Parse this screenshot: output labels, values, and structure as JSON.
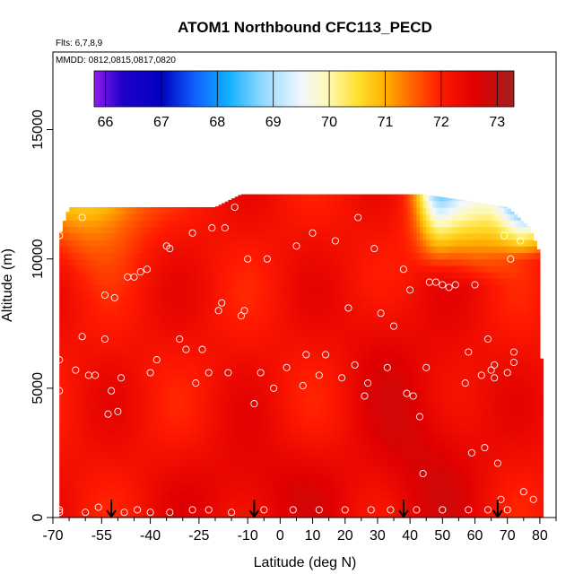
{
  "chart_data": {
    "type": "heatmap",
    "title": "ATOM1 Northbound CFC113_PECD",
    "annotations": [
      "Flts: 6,7,8,9",
      "MMDD: 0812,0815,0817,0820"
    ],
    "xlabel": "Latitude (deg N)",
    "ylabel": "Altitude (m)",
    "xlim": [
      -70,
      85
    ],
    "ylim": [
      0,
      18000
    ],
    "x_ticks": [
      -70,
      -55,
      -40,
      -25,
      -10,
      0,
      10,
      20,
      30,
      40,
      50,
      60,
      70,
      80
    ],
    "x_tick_labels": [
      "-70",
      "-55",
      "-40",
      "-25",
      "-10",
      "0",
      "10",
      "20",
      "30",
      "40",
      "50",
      "60",
      "70",
      "80"
    ],
    "x_minor_ticks": [
      -65,
      -60,
      -50,
      -45,
      -35,
      -30,
      -20,
      -15,
      -5,
      5,
      15,
      25,
      35,
      45,
      55,
      65,
      75,
      85
    ],
    "y_ticks": [
      0,
      5000,
      10000,
      15000
    ],
    "y_tick_labels": [
      "0",
      "5000",
      "10000",
      "15000"
    ],
    "colorbar": {
      "range": [
        65.8,
        73.3
      ],
      "ticks": [
        66,
        67,
        68,
        69,
        70,
        71,
        72,
        73
      ],
      "tick_labels": [
        "66",
        "67",
        "68",
        "69",
        "70",
        "71",
        "72",
        "73"
      ],
      "stops": [
        {
          "v": 65.8,
          "c": "#8f1cf0"
        },
        {
          "v": 66.3,
          "c": "#2000c8"
        },
        {
          "v": 67.0,
          "c": "#0000c0"
        },
        {
          "v": 67.6,
          "c": "#1060ff"
        },
        {
          "v": 68.2,
          "c": "#10b0ff"
        },
        {
          "v": 68.8,
          "c": "#90d8ff"
        },
        {
          "v": 69.5,
          "c": "#f2f7ff"
        },
        {
          "v": 70.0,
          "c": "#fff8b0"
        },
        {
          "v": 70.5,
          "c": "#ffe030"
        },
        {
          "v": 71.0,
          "c": "#ffb000"
        },
        {
          "v": 71.5,
          "c": "#ff6000"
        },
        {
          "v": 72.0,
          "c": "#ff1a00"
        },
        {
          "v": 72.6,
          "c": "#e00000"
        },
        {
          "v": 73.0,
          "c": "#c01010"
        },
        {
          "v": 73.3,
          "c": "#a02020"
        }
      ]
    },
    "field_ceiling": [
      [
        -68,
        10800
      ],
      [
        -67,
        11300
      ],
      [
        -65,
        12000
      ],
      [
        -20,
        12000
      ],
      [
        -12,
        12500
      ],
      [
        44,
        12500
      ],
      [
        55,
        12300
      ],
      [
        70,
        12000
      ],
      [
        77,
        11200
      ],
      [
        80,
        10200
      ],
      [
        80,
        6500
      ],
      [
        81,
        5800
      ],
      [
        81,
        500
      ]
    ],
    "field_lat_range": [
      -68,
      81
    ],
    "samples": [
      [
        -68,
        300
      ],
      [
        -68,
        4900
      ],
      [
        -68,
        6100
      ],
      [
        -68,
        10900
      ],
      [
        -63,
        5700
      ],
      [
        -61,
        7000
      ],
      [
        -61,
        11600
      ],
      [
        -59,
        5500
      ],
      [
        -57,
        5500
      ],
      [
        -54,
        6900
      ],
      [
        -54,
        8600
      ],
      [
        -53,
        4000
      ],
      [
        -52,
        4900
      ],
      [
        -51,
        8500
      ],
      [
        -50,
        4100
      ],
      [
        -49,
        5400
      ],
      [
        -47,
        9300
      ],
      [
        -45,
        9300
      ],
      [
        -43,
        9500
      ],
      [
        -41,
        9600
      ],
      [
        -40,
        5600
      ],
      [
        -38,
        6100
      ],
      [
        -35,
        10500
      ],
      [
        -34,
        10400
      ],
      [
        -31,
        6900
      ],
      [
        -29,
        6500
      ],
      [
        -27,
        11000
      ],
      [
        -26,
        5200
      ],
      [
        -24,
        6500
      ],
      [
        -22,
        5600
      ],
      [
        -21,
        11200
      ],
      [
        -19,
        8000
      ],
      [
        -18,
        8300
      ],
      [
        -17,
        11200
      ],
      [
        -16,
        5600
      ],
      [
        -14,
        12000
      ],
      [
        -12,
        7800
      ],
      [
        -11,
        8000
      ],
      [
        -10,
        10000
      ],
      [
        -8,
        4400
      ],
      [
        -6,
        5600
      ],
      [
        -4,
        10000
      ],
      [
        -2,
        5000
      ],
      [
        2,
        5800
      ],
      [
        5,
        10500
      ],
      [
        7,
        5100
      ],
      [
        8,
        6300
      ],
      [
        10,
        11000
      ],
      [
        12,
        5500
      ],
      [
        14,
        6300
      ],
      [
        17,
        10700
      ],
      [
        19,
        5400
      ],
      [
        21,
        8100
      ],
      [
        23,
        5900
      ],
      [
        24,
        11600
      ],
      [
        26,
        4700
      ],
      [
        27,
        5200
      ],
      [
        29,
        10400
      ],
      [
        31,
        7900
      ],
      [
        33,
        5800
      ],
      [
        35,
        7400
      ],
      [
        38,
        9600
      ],
      [
        39,
        4800
      ],
      [
        40,
        8800
      ],
      [
        41,
        4700
      ],
      [
        43,
        3900
      ],
      [
        44,
        1700
      ],
      [
        45,
        5800
      ],
      [
        46,
        9100
      ],
      [
        48,
        9100
      ],
      [
        50,
        9000
      ],
      [
        52,
        8900
      ],
      [
        54,
        9000
      ],
      [
        57,
        5200
      ],
      [
        58,
        6400
      ],
      [
        59,
        2500
      ],
      [
        60,
        9000
      ],
      [
        62,
        5500
      ],
      [
        63,
        2700
      ],
      [
        64,
        6900
      ],
      [
        65,
        5700
      ],
      [
        66,
        5900
      ],
      [
        66,
        5400
      ],
      [
        67,
        2100
      ],
      [
        68,
        700
      ],
      [
        69,
        10900
      ],
      [
        70,
        5600
      ],
      [
        71,
        10000
      ],
      [
        72,
        6400
      ],
      [
        72,
        6000
      ],
      [
        73,
        11900
      ],
      [
        74,
        10700
      ],
      [
        75,
        1000
      ],
      [
        78,
        700
      ],
      [
        -68,
        200
      ],
      [
        -60,
        200
      ],
      [
        -56,
        400
      ],
      [
        -48,
        200
      ],
      [
        -44,
        300
      ],
      [
        -40,
        200
      ],
      [
        -34,
        200
      ],
      [
        -27,
        300
      ],
      [
        -22,
        300
      ],
      [
        -15,
        200
      ],
      [
        -5,
        300
      ],
      [
        4,
        300
      ],
      [
        12,
        300
      ],
      [
        20,
        300
      ],
      [
        28,
        300
      ],
      [
        34,
        300
      ],
      [
        42,
        300
      ],
      [
        50,
        300
      ],
      [
        58,
        300
      ],
      [
        64,
        300
      ],
      [
        70,
        300
      ]
    ],
    "flight_markers": [
      -52,
      -8,
      38,
      67
    ]
  }
}
